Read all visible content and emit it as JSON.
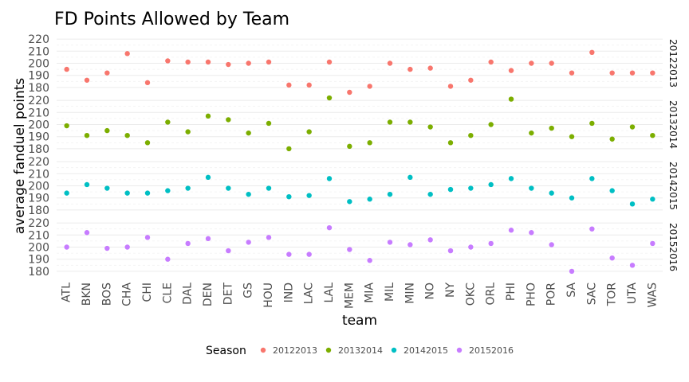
{
  "chart_data": {
    "type": "scatter",
    "title": "FD Points Allowed by Team",
    "xlabel": "team",
    "ylabel": "average fanduel points",
    "facet_by": "Season",
    "ylim": [
      176,
      224
    ],
    "y_ticks": [
      180,
      190,
      200,
      210,
      220
    ],
    "grid": true,
    "legend": {
      "title": "Season",
      "placement": "bottom"
    },
    "categories": [
      "ATL",
      "BKN",
      "BOS",
      "CHA",
      "CHI",
      "CLE",
      "DAL",
      "DEN",
      "DET",
      "GS",
      "HOU",
      "IND",
      "LAC",
      "LAL",
      "MEM",
      "MIA",
      "MIL",
      "MIN",
      "NO",
      "NY",
      "OKC",
      "ORL",
      "PHI",
      "PHO",
      "POR",
      "SA",
      "SAC",
      "TOR",
      "UTA",
      "WAS"
    ],
    "series": [
      {
        "name": "20122013",
        "color": "#F8766D",
        "values": [
          195,
          186,
          192,
          208,
          184,
          202,
          201,
          201,
          199,
          200,
          201,
          182,
          182,
          201,
          176,
          181,
          200,
          195,
          196,
          181,
          186,
          201,
          194,
          200,
          200,
          192,
          209,
          192,
          192,
          192
        ]
      },
      {
        "name": "20132014",
        "color": "#7CAE00",
        "values": [
          199,
          191,
          195,
          191,
          185,
          202,
          194,
          207,
          204,
          193,
          201,
          180,
          194,
          222,
          182,
          185,
          202,
          202,
          198,
          185,
          191,
          200,
          221,
          193,
          197,
          190,
          201,
          188,
          198,
          191
        ]
      },
      {
        "name": "20142015",
        "color": "#00BFC4",
        "values": [
          194,
          201,
          198,
          194,
          194,
          196,
          198,
          207,
          198,
          193,
          198,
          191,
          192,
          206,
          187,
          189,
          193,
          207,
          193,
          197,
          198,
          201,
          206,
          198,
          194,
          190,
          206,
          196,
          185,
          189
        ]
      },
      {
        "name": "20152016",
        "color": "#C77CFF",
        "values": [
          200,
          212,
          199,
          200,
          208,
          190,
          203,
          207,
          197,
          204,
          208,
          194,
          194,
          216,
          198,
          189,
          204,
          202,
          206,
          197,
          200,
          203,
          214,
          212,
          202,
          180,
          215,
          191,
          185,
          203
        ]
      }
    ]
  }
}
